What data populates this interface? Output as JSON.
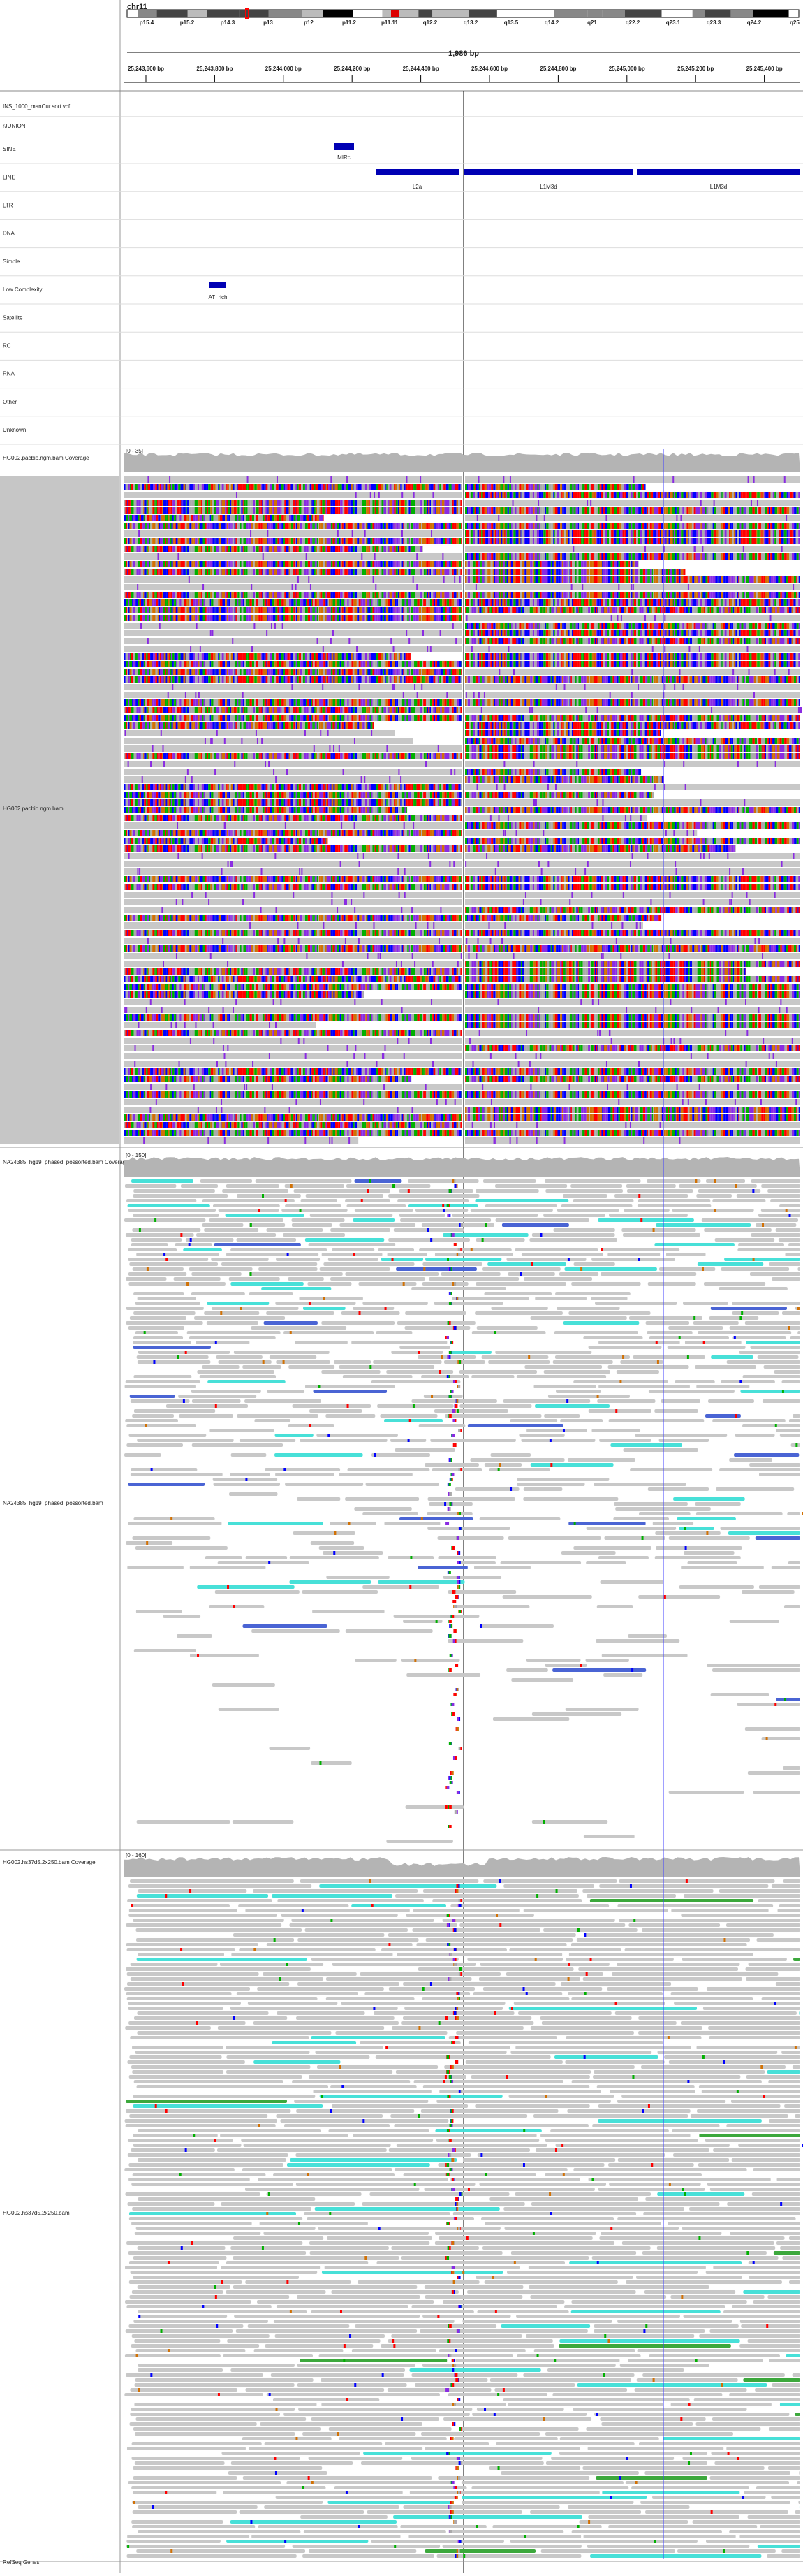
{
  "locus": {
    "chromosome": "chr11",
    "cytobands": [
      "p15.4",
      "p15.2",
      "p14.3",
      "p13",
      "p12",
      "p11.2",
      "p11.11",
      "q12.2",
      "q13.2",
      "q13.5",
      "q14.2",
      "q21",
      "q22.2",
      "q23.1",
      "q23.3",
      "q24.2",
      "q25"
    ],
    "span": "1,986 bp",
    "ruler_labels": [
      "25,243,600 bp",
      "25,243,800 bp",
      "25,244,000 bp",
      "25,244,200 bp",
      "25,244,400 bp",
      "25,244,600 bp",
      "25,244,800 bp",
      "25,245,000 bp",
      "25,245,200 bp",
      "25,245,400 bp"
    ]
  },
  "tracks": {
    "vcf": "INS_1000_manCur.sort.vcf",
    "junction": "rJUNION",
    "repeat_classes": [
      "SINE",
      "LINE",
      "LTR",
      "DNA",
      "Simple",
      "Low Complexity",
      "Satellite",
      "RC",
      "RNA",
      "Other",
      "Unknown"
    ],
    "repeat_features": [
      "MIRc",
      "L2a",
      "L1M3d",
      "L1M3d",
      "AT_rich"
    ],
    "alignments": [
      {
        "coverage_name": "HG002.pacbio.ngm.bam Coverage",
        "coverage_range": "[0 - 35]",
        "name": "HG002.pacbio.ngm.bam"
      },
      {
        "coverage_name": "NA24385_hg19_phased_possorted.bam Coverage",
        "coverage_range": "[0 - 150]",
        "name": "NA24385_hg19_phased_possorted.bam"
      },
      {
        "coverage_name": "HG002.hs37d5.2x250.bam Coverage",
        "coverage_range": "[0 - 160]",
        "name": "HG002.hs37d5.2x250.bam"
      }
    ],
    "genes": "RefSeq Genes"
  }
}
